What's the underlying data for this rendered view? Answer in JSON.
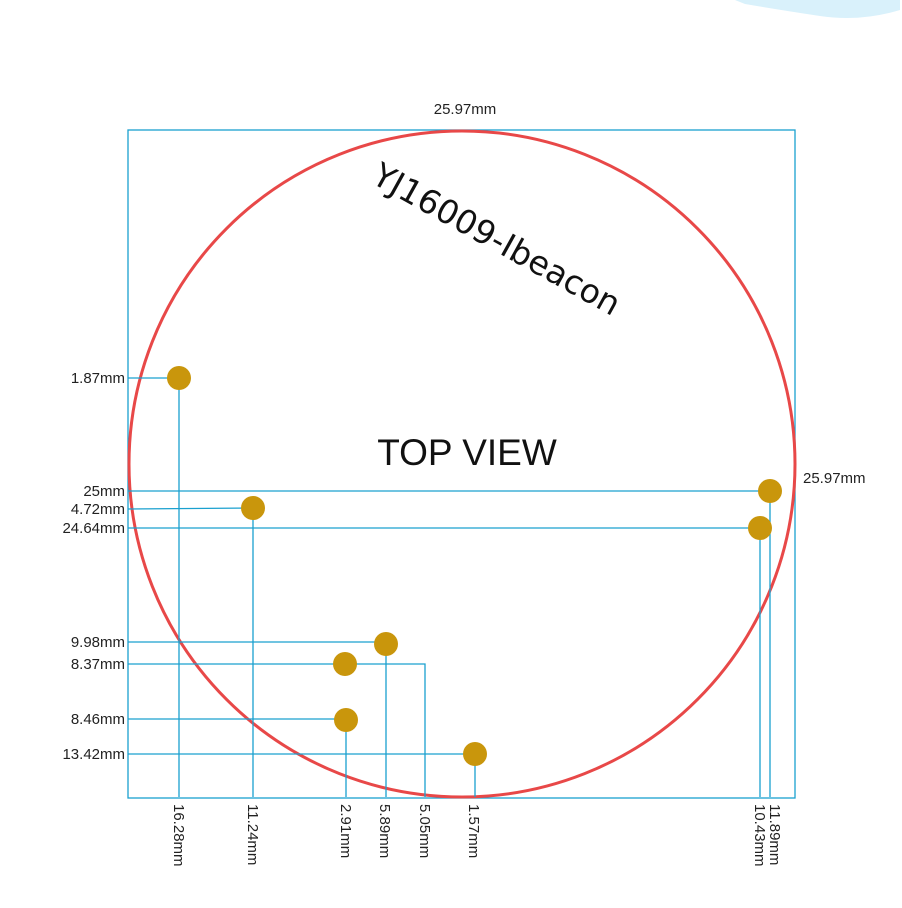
{
  "diagram": {
    "title": "YJ16009-Ibeacon",
    "view_label": "TOP VIEW",
    "width_label": "25.97mm",
    "height_label": "25.97mm",
    "colors": {
      "outline": "#e84848",
      "dimension_lines": "#1aa0cf",
      "pads": "#c9960c"
    },
    "left_dimensions": [
      "1.87mm",
      "25mm",
      "4.72mm",
      "24.64mm",
      "9.98mm",
      "8.37mm",
      "8.46mm",
      "13.42mm"
    ],
    "bottom_dimensions": [
      "16.28mm",
      "11.24mm",
      "2.91mm",
      "5.89mm",
      "5.05mm",
      "1.57mm",
      "10.43mm",
      "11.89mm"
    ]
  }
}
